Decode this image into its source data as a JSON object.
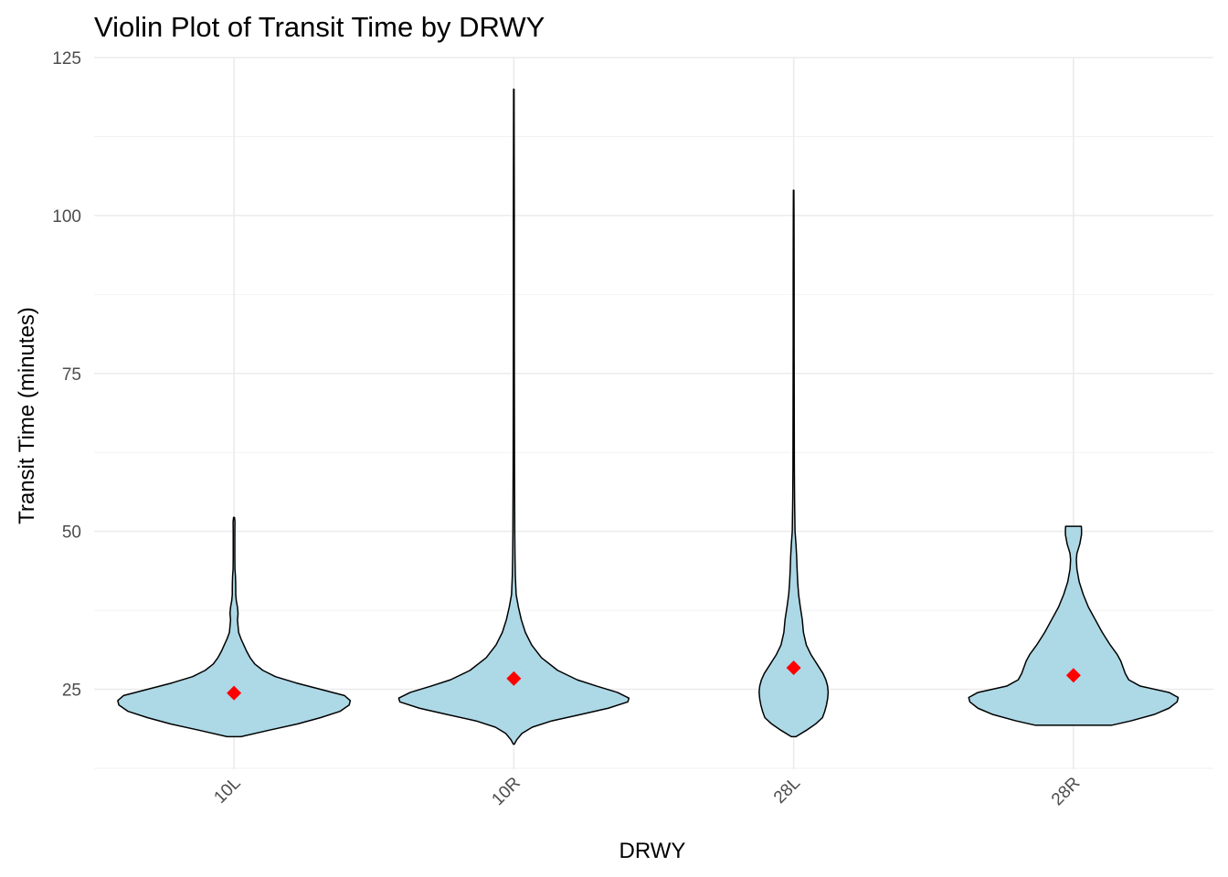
{
  "chart_data": {
    "type": "violin",
    "title": "Violin Plot of Transit Time by DRWY",
    "xlabel": "DRWY",
    "ylabel": "Transit Time (minutes)",
    "categories": [
      "10L",
      "10R",
      "28L",
      "28R"
    ],
    "ylim": [
      12.5,
      127
    ],
    "yticks": [
      25,
      50,
      75,
      100,
      125
    ],
    "grid": true,
    "fill_color": "#add8e6",
    "outline_color": "#000000",
    "mean_marker": {
      "color": "#ff0000",
      "shape": "diamond"
    },
    "means": [
      24.4,
      26.7,
      28.4,
      27.2
    ],
    "violins": [
      {
        "category": "10L",
        "min": 17.5,
        "max": 52.2,
        "profile": [
          [
            17.5,
            0.06
          ],
          [
            18.5,
            0.3
          ],
          [
            19.5,
            0.55
          ],
          [
            20.5,
            0.75
          ],
          [
            21.5,
            0.92
          ],
          [
            22.5,
            1.0
          ],
          [
            23.2,
            1.01
          ],
          [
            24,
            0.96
          ],
          [
            25,
            0.75
          ],
          [
            26,
            0.54
          ],
          [
            27,
            0.36
          ],
          [
            28,
            0.25
          ],
          [
            29,
            0.18
          ],
          [
            30,
            0.14
          ],
          [
            31,
            0.11
          ],
          [
            32,
            0.085
          ],
          [
            33,
            0.06
          ],
          [
            34,
            0.04
          ],
          [
            35,
            0.035
          ],
          [
            36,
            0.03
          ],
          [
            37,
            0.035
          ],
          [
            38,
            0.03
          ],
          [
            39,
            0.02
          ],
          [
            40,
            0.015
          ],
          [
            41,
            0.015
          ],
          [
            42,
            0.014
          ],
          [
            43,
            0.012
          ],
          [
            44,
            0.008
          ],
          [
            46,
            0.007
          ],
          [
            48,
            0.007
          ],
          [
            50,
            0.007
          ],
          [
            51.5,
            0.008
          ],
          [
            52.2,
            0.004
          ]
        ]
      },
      {
        "category": "10R",
        "min": 16.3,
        "max": 120,
        "profile": [
          [
            16.3,
            0.004
          ],
          [
            17,
            0.025
          ],
          [
            18,
            0.07
          ],
          [
            19,
            0.16
          ],
          [
            20,
            0.33
          ],
          [
            21,
            0.58
          ],
          [
            22,
            0.82
          ],
          [
            23,
            0.99
          ],
          [
            23.6,
            1.0
          ],
          [
            24.5,
            0.9
          ],
          [
            25.5,
            0.72
          ],
          [
            26.5,
            0.55
          ],
          [
            28,
            0.38
          ],
          [
            30,
            0.24
          ],
          [
            32,
            0.155
          ],
          [
            34,
            0.1
          ],
          [
            36,
            0.065
          ],
          [
            38,
            0.04
          ],
          [
            40,
            0.02
          ],
          [
            43,
            0.013
          ],
          [
            46,
            0.01
          ],
          [
            50,
            0.008
          ],
          [
            55,
            0.007
          ],
          [
            60,
            0.006
          ],
          [
            70,
            0.005
          ],
          [
            80,
            0.004
          ],
          [
            90,
            0.004
          ],
          [
            100,
            0.004
          ],
          [
            110,
            0.003
          ],
          [
            120,
            0.002
          ]
        ]
      },
      {
        "category": "28L",
        "min": 17.5,
        "max": 104,
        "profile": [
          [
            17.5,
            0.02
          ],
          [
            18.5,
            0.11
          ],
          [
            19.5,
            0.19
          ],
          [
            20.5,
            0.25
          ],
          [
            21.5,
            0.27
          ],
          [
            22.5,
            0.285
          ],
          [
            23.5,
            0.295
          ],
          [
            24.5,
            0.3
          ],
          [
            25.5,
            0.295
          ],
          [
            26.5,
            0.28
          ],
          [
            27.5,
            0.255
          ],
          [
            28.5,
            0.22
          ],
          [
            29.5,
            0.185
          ],
          [
            30.5,
            0.15
          ],
          [
            32,
            0.11
          ],
          [
            34,
            0.085
          ],
          [
            36,
            0.075
          ],
          [
            38,
            0.058
          ],
          [
            40,
            0.043
          ],
          [
            42,
            0.035
          ],
          [
            44,
            0.03
          ],
          [
            46,
            0.026
          ],
          [
            48,
            0.02
          ],
          [
            50,
            0.012
          ],
          [
            55,
            0.008
          ],
          [
            60,
            0.006
          ],
          [
            70,
            0.005
          ],
          [
            80,
            0.004
          ],
          [
            90,
            0.004
          ],
          [
            100,
            0.003
          ],
          [
            104,
            0.002
          ]
        ]
      },
      {
        "category": "28R",
        "min": 19.3,
        "max": 50.8,
        "profile": [
          [
            19.3,
            0.33
          ],
          [
            20,
            0.5
          ],
          [
            21,
            0.7
          ],
          [
            22,
            0.83
          ],
          [
            23,
            0.9
          ],
          [
            23.7,
            0.91
          ],
          [
            24.5,
            0.83
          ],
          [
            25.5,
            0.58
          ],
          [
            26.5,
            0.48
          ],
          [
            27.5,
            0.45
          ],
          [
            28.5,
            0.43
          ],
          [
            29.5,
            0.41
          ],
          [
            30.5,
            0.38
          ],
          [
            32,
            0.32
          ],
          [
            34,
            0.25
          ],
          [
            36,
            0.19
          ],
          [
            38,
            0.13
          ],
          [
            40,
            0.085
          ],
          [
            42,
            0.05
          ],
          [
            44,
            0.03
          ],
          [
            45.5,
            0.025
          ],
          [
            46.5,
            0.03
          ],
          [
            48,
            0.055
          ],
          [
            49.5,
            0.07
          ],
          [
            50.3,
            0.07
          ],
          [
            50.8,
            0.068
          ]
        ]
      }
    ]
  }
}
